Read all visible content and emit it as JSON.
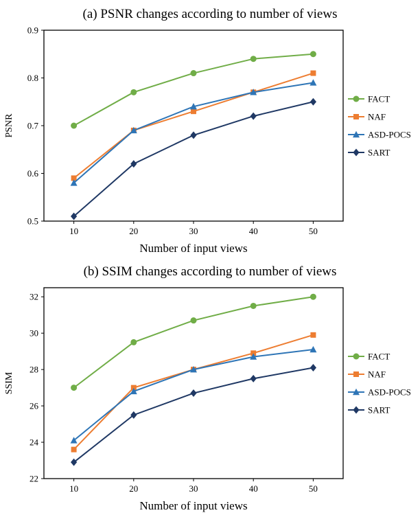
{
  "chart_data": [
    {
      "type": "line",
      "title": "(a) PSNR changes according to number of views",
      "xlabel": "Number of input views",
      "ylabel": "PSNR",
      "x": [
        10,
        20,
        30,
        40,
        50
      ],
      "xtick_labels": [
        "10",
        "20",
        "30",
        "40",
        "50"
      ],
      "ylim": [
        0.5,
        0.9
      ],
      "yticks": [
        0.5,
        0.6,
        0.7,
        0.8,
        0.9
      ],
      "ytick_labels": [
        "0.5",
        "0.6",
        "0.7",
        "0.8",
        "0.9"
      ],
      "grid": false,
      "legend_position": "right",
      "series": [
        {
          "name": "FACT",
          "color": "#70ad47",
          "marker": "circle",
          "values": [
            0.7,
            0.77,
            0.81,
            0.84,
            0.85
          ]
        },
        {
          "name": "NAF",
          "color": "#ed7d31",
          "marker": "square",
          "values": [
            0.59,
            0.69,
            0.73,
            0.77,
            0.81
          ]
        },
        {
          "name": "ASD-POCS",
          "color": "#2e75b6",
          "marker": "triangle",
          "values": [
            0.58,
            0.69,
            0.74,
            0.77,
            0.79
          ]
        },
        {
          "name": "SART",
          "color": "#1f3864",
          "marker": "diamond",
          "values": [
            0.51,
            0.62,
            0.68,
            0.72,
            0.75
          ]
        }
      ]
    },
    {
      "type": "line",
      "title": "(b) SSIM changes according to number of views",
      "xlabel": "Number of input views",
      "ylabel": "SSIM",
      "x": [
        10,
        20,
        30,
        40,
        50
      ],
      "xtick_labels": [
        "10",
        "20",
        "30",
        "40",
        "50"
      ],
      "ylim": [
        22,
        32.5
      ],
      "yticks": [
        22,
        24,
        26,
        28,
        30,
        32
      ],
      "ytick_labels": [
        "22",
        "24",
        "26",
        "28",
        "30",
        "32"
      ],
      "grid": false,
      "legend_position": "right",
      "series": [
        {
          "name": "FACT",
          "color": "#70ad47",
          "marker": "circle",
          "values": [
            27.0,
            29.5,
            30.7,
            31.5,
            32.0
          ]
        },
        {
          "name": "NAF",
          "color": "#ed7d31",
          "marker": "square",
          "values": [
            23.6,
            27.0,
            28.0,
            28.9,
            29.9
          ]
        },
        {
          "name": "ASD-POCS",
          "color": "#2e75b6",
          "marker": "triangle",
          "values": [
            24.1,
            26.8,
            28.0,
            28.7,
            29.1
          ]
        },
        {
          "name": "SART",
          "color": "#1f3864",
          "marker": "diamond",
          "values": [
            22.9,
            25.5,
            26.7,
            27.5,
            28.1
          ]
        }
      ]
    }
  ]
}
